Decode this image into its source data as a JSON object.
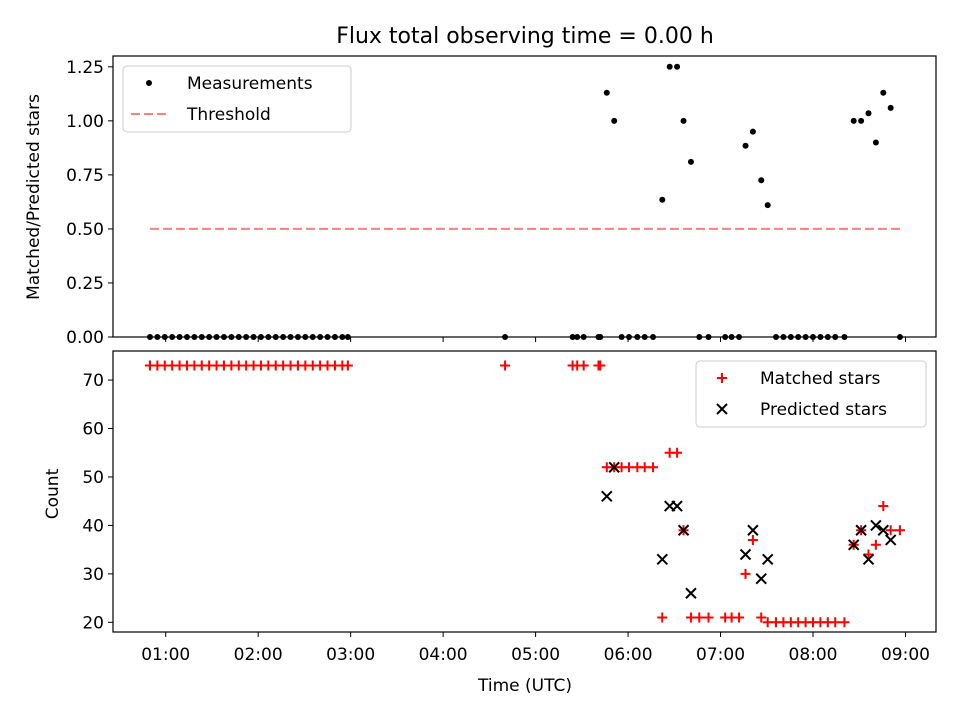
{
  "chart_data": [
    {
      "type": "scatter",
      "title": "Flux total observing time = 0.00 h",
      "xlabel": "",
      "ylabel": "Matched/Predicted stars",
      "xlim": [
        0.43,
        9.33
      ],
      "ylim": [
        0,
        1.3
      ],
      "yticks": [
        0,
        0.25,
        0.5,
        0.75,
        1.0,
        1.25
      ],
      "ytick_labels": [
        "0.00",
        "0.25",
        "0.50",
        "0.75",
        "1.00",
        "1.25"
      ],
      "legend_position": "top-left",
      "series": [
        {
          "name": "Measurements",
          "color": "#000000",
          "marker": "dot",
          "points": [
            [
              0.83,
              0
            ],
            [
              0.91,
              0
            ],
            [
              0.99,
              0
            ],
            [
              1.07,
              0
            ],
            [
              1.15,
              0
            ],
            [
              1.23,
              0
            ],
            [
              1.31,
              0
            ],
            [
              1.39,
              0
            ],
            [
              1.47,
              0
            ],
            [
              1.55,
              0
            ],
            [
              1.63,
              0
            ],
            [
              1.71,
              0
            ],
            [
              1.79,
              0
            ],
            [
              1.87,
              0
            ],
            [
              1.95,
              0
            ],
            [
              2.03,
              0
            ],
            [
              2.11,
              0
            ],
            [
              2.19,
              0
            ],
            [
              2.27,
              0
            ],
            [
              2.35,
              0
            ],
            [
              2.43,
              0
            ],
            [
              2.51,
              0
            ],
            [
              2.59,
              0
            ],
            [
              2.67,
              0
            ],
            [
              2.75,
              0
            ],
            [
              2.83,
              0
            ],
            [
              2.91,
              0
            ],
            [
              2.97,
              0
            ],
            [
              4.67,
              0
            ],
            [
              5.4,
              0
            ],
            [
              5.45,
              0
            ],
            [
              5.52,
              0
            ],
            [
              5.68,
              0
            ],
            [
              5.7,
              0
            ],
            [
              5.77,
              1.13
            ],
            [
              5.85,
              1.0
            ],
            [
              5.93,
              0
            ],
            [
              6.01,
              0
            ],
            [
              6.1,
              0
            ],
            [
              6.18,
              0
            ],
            [
              6.27,
              0
            ],
            [
              6.37,
              0.635
            ],
            [
              6.45,
              1.25
            ],
            [
              6.53,
              1.25
            ],
            [
              6.6,
              1.0
            ],
            [
              6.68,
              0.81
            ],
            [
              6.77,
              0
            ],
            [
              6.87,
              0
            ],
            [
              7.05,
              0
            ],
            [
              7.12,
              0
            ],
            [
              7.2,
              0
            ],
            [
              7.27,
              0.885
            ],
            [
              7.35,
              0.95
            ],
            [
              7.44,
              0.725
            ],
            [
              7.51,
              0.61
            ],
            [
              7.6,
              0
            ],
            [
              7.68,
              0
            ],
            [
              7.76,
              0
            ],
            [
              7.84,
              0
            ],
            [
              7.92,
              0
            ],
            [
              8.0,
              0
            ],
            [
              8.08,
              0
            ],
            [
              8.16,
              0
            ],
            [
              8.24,
              0
            ],
            [
              8.34,
              0
            ],
            [
              8.44,
              1.0
            ],
            [
              8.52,
              1.0
            ],
            [
              8.6,
              1.035
            ],
            [
              8.68,
              0.9
            ],
            [
              8.76,
              1.13
            ],
            [
              8.84,
              1.06
            ],
            [
              8.94,
              0
            ]
          ]
        },
        {
          "name": "Threshold",
          "color": "#ff7f7f",
          "style": "dashed",
          "points": [
            [
              0.83,
              0.5
            ],
            [
              8.94,
              0.5
            ]
          ]
        }
      ]
    },
    {
      "type": "scatter",
      "title": "",
      "xlabel": "Time (UTC)",
      "ylabel": "Count",
      "xlim": [
        0.43,
        9.33
      ],
      "ylim": [
        18,
        76
      ],
      "yticks": [
        20,
        30,
        40,
        50,
        60,
        70
      ],
      "ytick_labels": [
        "20",
        "30",
        "40",
        "50",
        "60",
        "70"
      ],
      "xticks": [
        1,
        2,
        3,
        4,
        5,
        6,
        7,
        8,
        9
      ],
      "xtick_labels": [
        "01:00",
        "02:00",
        "03:00",
        "04:00",
        "05:00",
        "06:00",
        "07:00",
        "08:00",
        "09:00"
      ],
      "legend_position": "top-right",
      "series": [
        {
          "name": "Matched stars",
          "color": "#ff0000",
          "marker": "plus",
          "points": [
            [
              0.83,
              73
            ],
            [
              0.91,
              73
            ],
            [
              0.99,
              73
            ],
            [
              1.07,
              73
            ],
            [
              1.15,
              73
            ],
            [
              1.23,
              73
            ],
            [
              1.31,
              73
            ],
            [
              1.39,
              73
            ],
            [
              1.47,
              73
            ],
            [
              1.55,
              73
            ],
            [
              1.63,
              73
            ],
            [
              1.71,
              73
            ],
            [
              1.79,
              73
            ],
            [
              1.87,
              73
            ],
            [
              1.95,
              73
            ],
            [
              2.03,
              73
            ],
            [
              2.11,
              73
            ],
            [
              2.19,
              73
            ],
            [
              2.27,
              73
            ],
            [
              2.35,
              73
            ],
            [
              2.43,
              73
            ],
            [
              2.51,
              73
            ],
            [
              2.59,
              73
            ],
            [
              2.67,
              73
            ],
            [
              2.75,
              73
            ],
            [
              2.83,
              73
            ],
            [
              2.91,
              73
            ],
            [
              2.97,
              73
            ],
            [
              4.67,
              73
            ],
            [
              5.4,
              73
            ],
            [
              5.45,
              73
            ],
            [
              5.52,
              73
            ],
            [
              5.68,
              73
            ],
            [
              5.7,
              73
            ],
            [
              5.77,
              52
            ],
            [
              5.85,
              52
            ],
            [
              5.93,
              52
            ],
            [
              6.01,
              52
            ],
            [
              6.1,
              52
            ],
            [
              6.18,
              52
            ],
            [
              6.27,
              52
            ],
            [
              6.37,
              21
            ],
            [
              6.45,
              55
            ],
            [
              6.53,
              55
            ],
            [
              6.6,
              39
            ],
            [
              6.68,
              21
            ],
            [
              6.77,
              21
            ],
            [
              6.87,
              21
            ],
            [
              7.05,
              21
            ],
            [
              7.12,
              21
            ],
            [
              7.2,
              21
            ],
            [
              7.27,
              30
            ],
            [
              7.35,
              37
            ],
            [
              7.44,
              21
            ],
            [
              7.51,
              20
            ],
            [
              7.6,
              20
            ],
            [
              7.68,
              20
            ],
            [
              7.76,
              20
            ],
            [
              7.84,
              20
            ],
            [
              7.92,
              20
            ],
            [
              8.0,
              20
            ],
            [
              8.08,
              20
            ],
            [
              8.16,
              20
            ],
            [
              8.24,
              20
            ],
            [
              8.34,
              20
            ],
            [
              8.44,
              36
            ],
            [
              8.52,
              39
            ],
            [
              8.6,
              34
            ],
            [
              8.68,
              36
            ],
            [
              8.76,
              44
            ],
            [
              8.84,
              39
            ],
            [
              8.94,
              39
            ]
          ]
        },
        {
          "name": "Predicted stars",
          "color": "#000000",
          "marker": "x",
          "points": [
            [
              5.77,
              46
            ],
            [
              5.85,
              52
            ],
            [
              6.37,
              33
            ],
            [
              6.45,
              44
            ],
            [
              6.53,
              44
            ],
            [
              6.6,
              39
            ],
            [
              6.68,
              26
            ],
            [
              7.27,
              34
            ],
            [
              7.35,
              39
            ],
            [
              7.44,
              29
            ],
            [
              7.51,
              33
            ],
            [
              8.44,
              36
            ],
            [
              8.52,
              39
            ],
            [
              8.6,
              33
            ],
            [
              8.68,
              40
            ],
            [
              8.76,
              39
            ],
            [
              8.84,
              37
            ]
          ]
        }
      ]
    }
  ]
}
